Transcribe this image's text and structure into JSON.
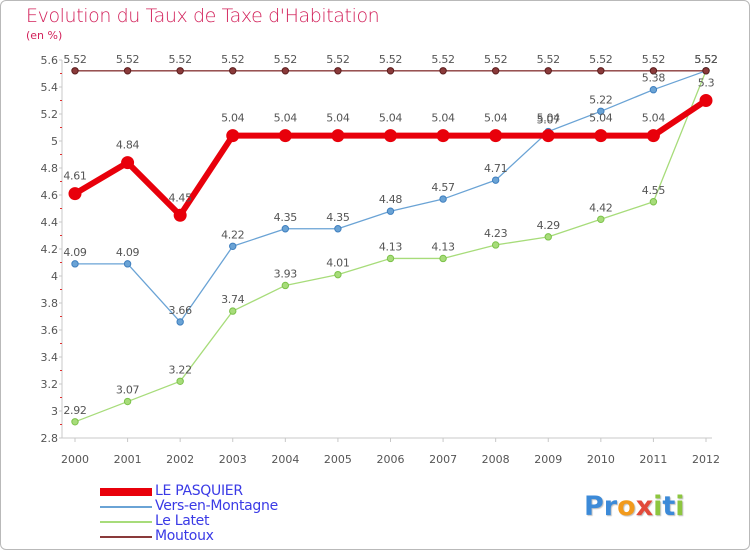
{
  "title": "Evolution du Taux de Taxe d'Habitation",
  "unit_label": "(en %)",
  "logo": {
    "letters": [
      {
        "ch": "P",
        "color": "#3c8ad8"
      },
      {
        "ch": "r",
        "color": "#3c8ad8"
      },
      {
        "ch": "o",
        "color": "#f29a1c"
      },
      {
        "ch": "x",
        "color": "#e24a3a"
      },
      {
        "ch": "i",
        "color": "#8dc63f"
      },
      {
        "ch": "t",
        "color": "#3c8ad8"
      },
      {
        "ch": "i",
        "color": "#8dc63f"
      }
    ]
  },
  "chart_data": {
    "type": "line",
    "title": "Evolution du Taux de Taxe d'Habitation",
    "ylabel": "(en %)",
    "xlabel": "",
    "x": [
      "2000",
      "2001",
      "2002",
      "2003",
      "2004",
      "2005",
      "2006",
      "2007",
      "2008",
      "2009",
      "2010",
      "2011",
      "2012"
    ],
    "ylim": [
      2.8,
      5.6
    ],
    "yticks": [
      "2.8",
      "3",
      "3.2",
      "3.4",
      "3.6",
      "3.8",
      "4",
      "4.2",
      "4.4",
      "4.6",
      "4.8",
      "5",
      "5.2",
      "5.4",
      "5.6"
    ],
    "grid": false,
    "legend_position": "bottom-left",
    "series": [
      {
        "name": "LE PASQUIER",
        "color": "#e8000b",
        "values": [
          4.61,
          4.84,
          4.45,
          5.04,
          5.04,
          5.04,
          5.04,
          5.04,
          5.04,
          5.04,
          5.04,
          5.04,
          5.3
        ],
        "labels": [
          "4.61",
          "4.84",
          "4.45",
          "5.04",
          "5.04",
          "5.04",
          "5.04",
          "5.04",
          "5.04",
          "5.04",
          "5.04",
          "5.04",
          "5.3"
        ]
      },
      {
        "name": "Vers-en-Montagne",
        "color": "#6aa3d5",
        "values": [
          4.09,
          4.09,
          3.66,
          4.22,
          4.35,
          4.35,
          4.48,
          4.57,
          4.71,
          5.07,
          5.22,
          5.38,
          5.52
        ],
        "labels": [
          "4.09",
          "4.09",
          "3.66",
          "4.22",
          "4.35",
          "4.35",
          "4.48",
          "4.57",
          "4.71",
          "5.07",
          "5.22",
          "5.38",
          "5.52"
        ]
      },
      {
        "name": "Le Latet",
        "color": "#a7dc7a",
        "values": [
          2.92,
          3.07,
          3.22,
          3.74,
          3.93,
          4.01,
          4.13,
          4.13,
          4.23,
          4.29,
          4.42,
          4.55,
          5.52
        ],
        "labels": [
          "2.92",
          "3.07",
          "3.22",
          "3.74",
          "3.93",
          "4.01",
          "4.13",
          "4.13",
          "4.23",
          "4.29",
          "4.42",
          "4.55",
          "5.52"
        ]
      },
      {
        "name": "Moutoux",
        "color": "#8a3a3a",
        "values": [
          5.52,
          5.52,
          5.52,
          5.52,
          5.52,
          5.52,
          5.52,
          5.52,
          5.52,
          5.52,
          5.52,
          5.52,
          5.52
        ],
        "labels": [
          "5.52",
          "5.52",
          "5.52",
          "5.52",
          "5.52",
          "5.52",
          "5.52",
          "5.52",
          "5.52",
          "5.52",
          "5.52",
          "5.52",
          "5.52"
        ]
      }
    ]
  }
}
